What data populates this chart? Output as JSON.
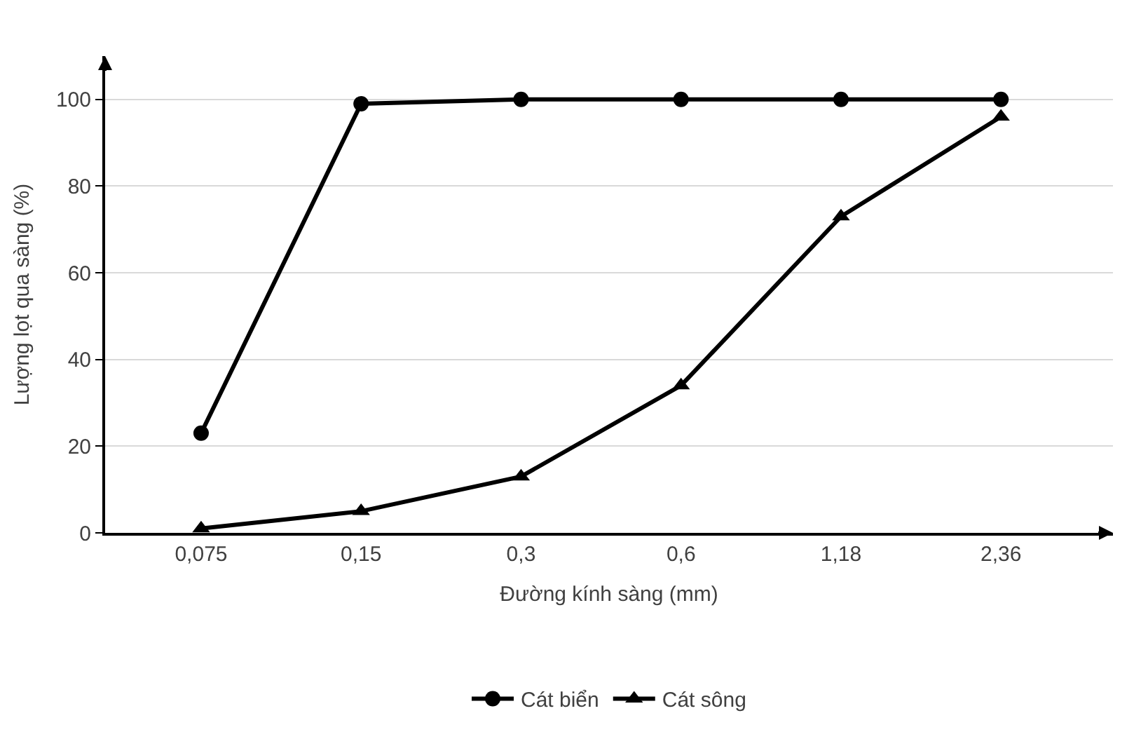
{
  "chart_data": {
    "type": "line",
    "xlabel": "Đường kính sàng (mm)",
    "ylabel": "Lượng lọt qua sàng (%)",
    "categories": [
      "0,075",
      "0,15",
      "0,3",
      "0,6",
      "1,18",
      "2,36"
    ],
    "series": [
      {
        "name": "Cát biển",
        "color": "#000000",
        "marker": "circle",
        "values": [
          23,
          99,
          100,
          100,
          100,
          100
        ]
      },
      {
        "name": "Cát sông",
        "color": "#000000",
        "marker": "triangle",
        "values": [
          1,
          5,
          13,
          34,
          73,
          96
        ]
      }
    ],
    "ylim": [
      0,
      110
    ],
    "yticks": [
      0,
      20,
      40,
      60,
      80,
      100
    ],
    "grid": "y",
    "legend": "bottom",
    "line_style": "solid"
  }
}
